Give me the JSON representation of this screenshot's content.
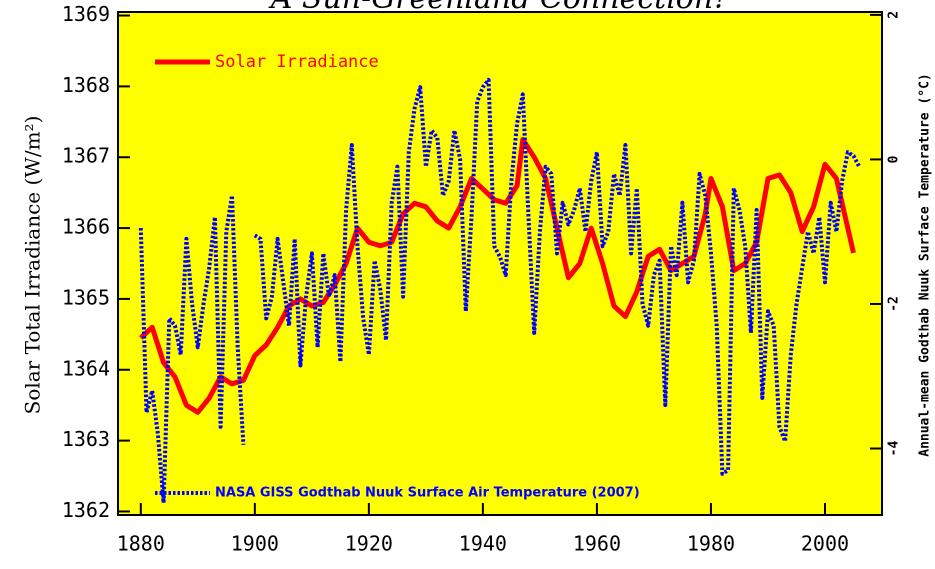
{
  "chart_data": {
    "type": "line",
    "title": "A Sun-Greenland Connection?",
    "y_label": "Solar Total Irradiance (W/m²)",
    "y2_label": "Annual-mean Godthab Nuuk Surface Temperature (°C)",
    "xlim": [
      1876,
      2010
    ],
    "xticks": [
      1880,
      1900,
      1920,
      1940,
      1960,
      1980,
      2000
    ],
    "ylim": [
      1361.95,
      1369.05
    ],
    "yticks": [
      1362,
      1363,
      1364,
      1365,
      1366,
      1367,
      1368,
      1369
    ],
    "y2lim": [
      -4.92,
      2.04
    ],
    "y2ticks": [
      -4,
      -2,
      0,
      2
    ],
    "background": "#ffff00",
    "series": [
      {
        "name": "Solar Irradiance",
        "color": "#ff0000",
        "style": "solid",
        "x": [
          1880,
          1882,
          1884,
          1886,
          1888,
          1890,
          1892,
          1894,
          1896,
          1898,
          1900,
          1902,
          1904,
          1906,
          1908,
          1910,
          1912,
          1914,
          1916,
          1918,
          1920,
          1922,
          1924,
          1926,
          1928,
          1930,
          1932,
          1934,
          1936,
          1938,
          1940,
          1942,
          1944,
          1946,
          1947,
          1949,
          1951,
          1953,
          1955,
          1957,
          1959,
          1961,
          1963,
          1965,
          1967,
          1969,
          1971,
          1973,
          1975,
          1977,
          1979,
          1980,
          1982,
          1984,
          1986,
          1988,
          1990,
          1992,
          1994,
          1996,
          1998,
          2000,
          2002,
          2004,
          2005
        ],
        "values": [
          1364.45,
          1364.6,
          1364.1,
          1363.9,
          1363.5,
          1363.4,
          1363.6,
          1363.9,
          1363.8,
          1363.85,
          1364.2,
          1364.35,
          1364.6,
          1364.9,
          1365.0,
          1364.9,
          1364.95,
          1365.2,
          1365.5,
          1366.0,
          1365.8,
          1365.75,
          1365.8,
          1366.2,
          1366.35,
          1366.3,
          1366.1,
          1366.0,
          1366.3,
          1366.7,
          1366.55,
          1366.4,
          1366.35,
          1366.6,
          1367.25,
          1367.0,
          1366.7,
          1366.0,
          1365.3,
          1365.5,
          1366.0,
          1365.5,
          1364.9,
          1364.75,
          1365.1,
          1365.6,
          1365.7,
          1365.4,
          1365.5,
          1365.6,
          1366.2,
          1366.7,
          1366.3,
          1365.4,
          1365.5,
          1365.8,
          1366.7,
          1366.75,
          1366.5,
          1365.95,
          1366.3,
          1366.9,
          1366.7,
          1366.0,
          1365.65
        ]
      },
      {
        "name": "NASA GISS Godthab Nuuk Surface Air Temperature (2007)",
        "color": "#0000ff",
        "style": "dotted",
        "axis": "y2",
        "x": [
          1880,
          1881,
          1882,
          1883,
          1884,
          1885,
          1886,
          1887,
          1888,
          1889,
          1890,
          1891,
          1892,
          1893,
          1894,
          1895,
          1896,
          1897,
          1898,
          1899,
          1900,
          1901,
          1902,
          1903,
          1904,
          1905,
          1906,
          1907,
          1908,
          1909,
          1910,
          1911,
          1912,
          1913,
          1914,
          1915,
          1916,
          1917,
          1918,
          1919,
          1920,
          1921,
          1922,
          1923,
          1924,
          1925,
          1926,
          1927,
          1928,
          1929,
          1930,
          1931,
          1932,
          1933,
          1934,
          1935,
          1936,
          1937,
          1938,
          1939,
          1940,
          1941,
          1942,
          1943,
          1944,
          1945,
          1946,
          1947,
          1948,
          1949,
          1950,
          1951,
          1952,
          1953,
          1954,
          1955,
          1956,
          1957,
          1958,
          1959,
          1960,
          1961,
          1962,
          1963,
          1964,
          1965,
          1966,
          1967,
          1968,
          1969,
          1970,
          1971,
          1972,
          1973,
          1974,
          1975,
          1976,
          1977,
          1978,
          1979,
          1980,
          1981,
          1982,
          1983,
          1984,
          1985,
          1986,
          1987,
          1988,
          1989,
          1990,
          1991,
          1992,
          1993,
          1994,
          1995,
          1996,
          1997,
          1998,
          1999,
          2000,
          2001,
          2002,
          2003,
          2004,
          2005,
          2006
        ],
        "values": [
          -0.95,
          -3.5,
          -3.2,
          -3.8,
          -4.75,
          -2.2,
          -2.3,
          -2.7,
          -1.1,
          -2.0,
          -2.6,
          -2.0,
          -1.5,
          -0.8,
          -3.7,
          -1.0,
          -0.5,
          -2.6,
          -3.95,
          null,
          -1.05,
          -1.1,
          -2.2,
          -1.9,
          -1.1,
          -1.7,
          -2.3,
          -1.1,
          -2.85,
          -1.9,
          -1.3,
          -2.6,
          -1.3,
          -1.9,
          -1.6,
          -2.8,
          -0.7,
          0.2,
          -1.2,
          -2.2,
          -2.7,
          -1.4,
          -1.8,
          -2.5,
          -0.6,
          -0.1,
          -1.9,
          0.1,
          0.7,
          1.0,
          -0.1,
          0.4,
          0.3,
          -0.5,
          -0.3,
          0.4,
          0.0,
          -2.1,
          -0.8,
          0.8,
          1.0,
          1.1,
          -1.2,
          -1.35,
          -1.6,
          -0.3,
          0.5,
          0.9,
          -0.8,
          -2.4,
          -1.0,
          -0.1,
          -0.2,
          -1.3,
          -0.6,
          -0.9,
          -0.7,
          -0.4,
          -1.0,
          -0.3,
          0.1,
          -1.2,
          -1.0,
          -0.2,
          -0.5,
          0.2,
          -1.3,
          -0.4,
          -2.0,
          -2.3,
          -1.6,
          -1.4,
          -3.4,
          -1.2,
          -1.6,
          -0.6,
          -1.7,
          -1.4,
          -0.2,
          -0.5,
          -1.3,
          -2.3,
          -4.35,
          -4.3,
          -0.4,
          -0.7,
          -1.2,
          -2.4,
          -0.7,
          -3.3,
          -2.1,
          -2.3,
          -3.7,
          -3.9,
          -2.7,
          -2.0,
          -1.5,
          -1.0,
          -1.3,
          -0.8,
          -1.7,
          -0.6,
          -1.0,
          -0.3,
          0.1,
          0.05,
          -0.1
        ]
      }
    ]
  }
}
